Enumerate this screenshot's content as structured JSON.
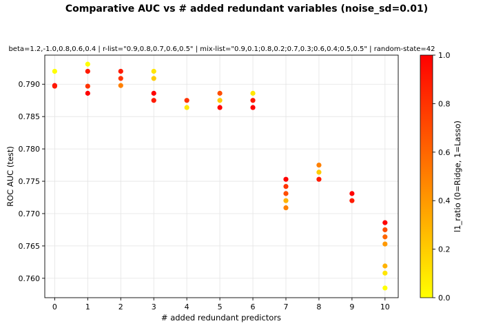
{
  "chart_data": {
    "type": "scatter",
    "title": "Comparative AUC vs # added redundant variables (noise_sd=0.01)",
    "subtitle": "beta=1.2,-1.0,0.8,0.6,0.4  |  r-list=\"0.9,0.8,0.7,0.6,0.5\"  |  mix-list=\"0.9,0.1;0.8,0.2;0.7,0.3;0.6,0.4;0.5,0.5\"  |  random-state=42",
    "xlabel": "# added redundant predictors",
    "ylabel": "ROC AUC (test)",
    "xlim": [
      -0.3,
      10.4
    ],
    "ylim": [
      0.757,
      0.7945
    ],
    "x_ticks": [
      "0",
      "1",
      "2",
      "3",
      "4",
      "5",
      "6",
      "7",
      "8",
      "9",
      "10"
    ],
    "y_ticks": [
      "0.760",
      "0.765",
      "0.770",
      "0.775",
      "0.780",
      "0.785",
      "0.790"
    ],
    "grid": true,
    "colorbar": {
      "label": "l1_ratio (0=Ridge, 1=Lasso)",
      "range": [
        0.0,
        1.0
      ],
      "ticks": [
        "0.0",
        "0.2",
        "0.4",
        "0.6",
        "0.8",
        "1.0"
      ],
      "colormap": "autumn_r",
      "color_low": "#ffff00",
      "color_high": "#ff0000"
    },
    "points": [
      {
        "x": 0,
        "y": 0.792,
        "c": 0.0
      },
      {
        "x": 0,
        "y": 0.7898,
        "c": 1.0
      },
      {
        "x": 0,
        "y": 0.7897,
        "c": 0.9
      },
      {
        "x": 1,
        "y": 0.7931,
        "c": 0.0
      },
      {
        "x": 1,
        "y": 0.792,
        "c": 0.9
      },
      {
        "x": 1,
        "y": 0.7897,
        "c": 0.8
      },
      {
        "x": 1,
        "y": 0.7886,
        "c": 1.0
      },
      {
        "x": 2,
        "y": 0.792,
        "c": 0.9
      },
      {
        "x": 2,
        "y": 0.7909,
        "c": 0.8
      },
      {
        "x": 2,
        "y": 0.7898,
        "c": 0.5
      },
      {
        "x": 3,
        "y": 0.792,
        "c": 0.1
      },
      {
        "x": 3,
        "y": 0.7909,
        "c": 0.2
      },
      {
        "x": 3,
        "y": 0.7886,
        "c": 1.0
      },
      {
        "x": 3,
        "y": 0.7875,
        "c": 0.9
      },
      {
        "x": 4,
        "y": 0.7875,
        "c": 0.8
      },
      {
        "x": 4,
        "y": 0.7864,
        "c": 0.1
      },
      {
        "x": 5,
        "y": 0.7886,
        "c": 0.7
      },
      {
        "x": 5,
        "y": 0.7875,
        "c": 0.2
      },
      {
        "x": 5,
        "y": 0.7864,
        "c": 1.0
      },
      {
        "x": 6,
        "y": 0.7886,
        "c": 0.1
      },
      {
        "x": 6,
        "y": 0.7875,
        "c": 0.9
      },
      {
        "x": 6,
        "y": 0.7864,
        "c": 1.0
      },
      {
        "x": 7,
        "y": 0.7753,
        "c": 1.0
      },
      {
        "x": 7,
        "y": 0.7742,
        "c": 0.8
      },
      {
        "x": 7,
        "y": 0.7731,
        "c": 0.7
      },
      {
        "x": 7,
        "y": 0.772,
        "c": 0.3
      },
      {
        "x": 7,
        "y": 0.7709,
        "c": 0.5
      },
      {
        "x": 8,
        "y": 0.7775,
        "c": 0.5
      },
      {
        "x": 8,
        "y": 0.7764,
        "c": 0.2
      },
      {
        "x": 8,
        "y": 0.7753,
        "c": 0.9
      },
      {
        "x": 9,
        "y": 0.7731,
        "c": 1.0
      },
      {
        "x": 9,
        "y": 0.772,
        "c": 0.9
      },
      {
        "x": 10,
        "y": 0.7686,
        "c": 1.0
      },
      {
        "x": 10,
        "y": 0.7675,
        "c": 0.7
      },
      {
        "x": 10,
        "y": 0.7664,
        "c": 0.6
      },
      {
        "x": 10,
        "y": 0.7653,
        "c": 0.4
      },
      {
        "x": 10,
        "y": 0.7619,
        "c": 0.3
      },
      {
        "x": 10,
        "y": 0.7608,
        "c": 0.1
      },
      {
        "x": 10,
        "y": 0.7585,
        "c": 0.0
      }
    ]
  }
}
